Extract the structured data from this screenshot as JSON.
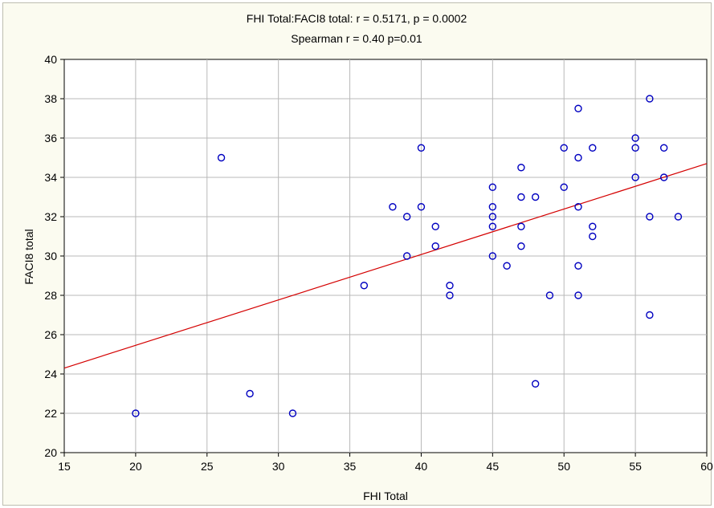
{
  "chart_data": {
    "type": "scatter",
    "title": "FHI Total:FACI8 total:    r = 0.5171, p = 0.0002",
    "subtitle": "Spearman r = 0.40 p=0.01",
    "xlabel": "FHI Total",
    "ylabel": "FACI8 total",
    "xlim": [
      15,
      60
    ],
    "ylim": [
      20,
      40
    ],
    "xticks": [
      "15",
      "20",
      "25",
      "30",
      "35",
      "40",
      "45",
      "50",
      "55",
      "60"
    ],
    "yticks": [
      "20",
      "22",
      "24",
      "26",
      "28",
      "30",
      "32",
      "34",
      "36",
      "38",
      "40"
    ],
    "grid": true,
    "marker": "hollow circle",
    "colors": {
      "points": "#0000c0",
      "fit_line": "#d40000",
      "background": "#fbfbf0",
      "grid": "#b8b8b8"
    },
    "fit_line": {
      "x": [
        15,
        60
      ],
      "y": [
        24.3,
        34.7
      ]
    },
    "points": [
      {
        "x": 20,
        "y": 22
      },
      {
        "x": 26,
        "y": 35
      },
      {
        "x": 28,
        "y": 23
      },
      {
        "x": 31,
        "y": 22
      },
      {
        "x": 36,
        "y": 28.5
      },
      {
        "x": 38,
        "y": 32.5
      },
      {
        "x": 39,
        "y": 32
      },
      {
        "x": 39,
        "y": 30
      },
      {
        "x": 40,
        "y": 35.5
      },
      {
        "x": 40,
        "y": 32.5
      },
      {
        "x": 41,
        "y": 31.5
      },
      {
        "x": 41,
        "y": 30.5
      },
      {
        "x": 42,
        "y": 28.5
      },
      {
        "x": 42,
        "y": 28
      },
      {
        "x": 45,
        "y": 33.5
      },
      {
        "x": 45,
        "y": 32.5
      },
      {
        "x": 45,
        "y": 32
      },
      {
        "x": 45,
        "y": 31.5
      },
      {
        "x": 45,
        "y": 30
      },
      {
        "x": 46,
        "y": 29.5
      },
      {
        "x": 47,
        "y": 34.5
      },
      {
        "x": 47,
        "y": 33
      },
      {
        "x": 47,
        "y": 31.5
      },
      {
        "x": 47,
        "y": 30.5
      },
      {
        "x": 48,
        "y": 33
      },
      {
        "x": 48,
        "y": 23.5
      },
      {
        "x": 49,
        "y": 28
      },
      {
        "x": 50,
        "y": 35.5
      },
      {
        "x": 50,
        "y": 33.5
      },
      {
        "x": 51,
        "y": 37.5
      },
      {
        "x": 51,
        "y": 35
      },
      {
        "x": 51,
        "y": 32.5
      },
      {
        "x": 51,
        "y": 29.5
      },
      {
        "x": 51,
        "y": 28
      },
      {
        "x": 52,
        "y": 35.5
      },
      {
        "x": 52,
        "y": 31.5
      },
      {
        "x": 52,
        "y": 31
      },
      {
        "x": 55,
        "y": 36
      },
      {
        "x": 55,
        "y": 35.5
      },
      {
        "x": 55,
        "y": 34
      },
      {
        "x": 56,
        "y": 38
      },
      {
        "x": 56,
        "y": 32
      },
      {
        "x": 56,
        "y": 27
      },
      {
        "x": 57,
        "y": 35.5
      },
      {
        "x": 57,
        "y": 34
      },
      {
        "x": 58,
        "y": 32
      }
    ]
  }
}
